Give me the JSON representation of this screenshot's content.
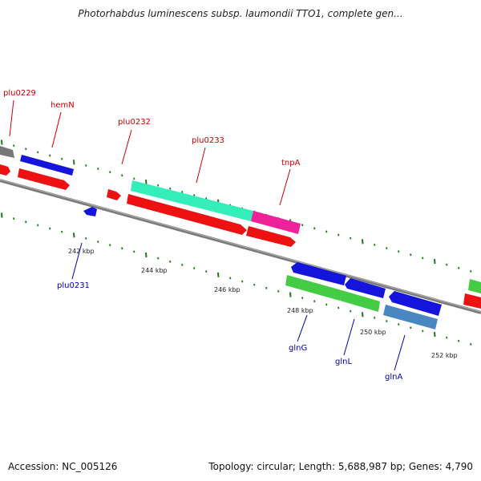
{
  "title": "Photorhabdus luminescens subsp. laumondii TTO1, complete gen...",
  "accession": "Accession: NC_005126",
  "meta": "Topology: circular; Length: 5,688,987 bp; Genes: 4,790",
  "colors": {
    "backbone": "#7a7a7a",
    "tick": "#1f7a1f",
    "fwd_label": "#cc0000",
    "rev_label": "#0000aa",
    "red": "#ee1111",
    "blue": "#1414dd",
    "teal": "#33eebb",
    "pink": "#ee2299",
    "green": "#44cc44",
    "steel": "#4a86c0",
    "gray": "#777777"
  },
  "scale_labels": [
    "242 kbp",
    "244 kbp",
    "246 kbp",
    "248 kbp",
    "250 kbp",
    "252 kbp"
  ],
  "gene_labels_forward": [
    "plu0229",
    "hemN",
    "plu0232",
    "plu0233",
    "tnpA"
  ],
  "gene_labels_reverse": [
    "plu0231",
    "glnG",
    "glnL",
    "glnA"
  ]
}
